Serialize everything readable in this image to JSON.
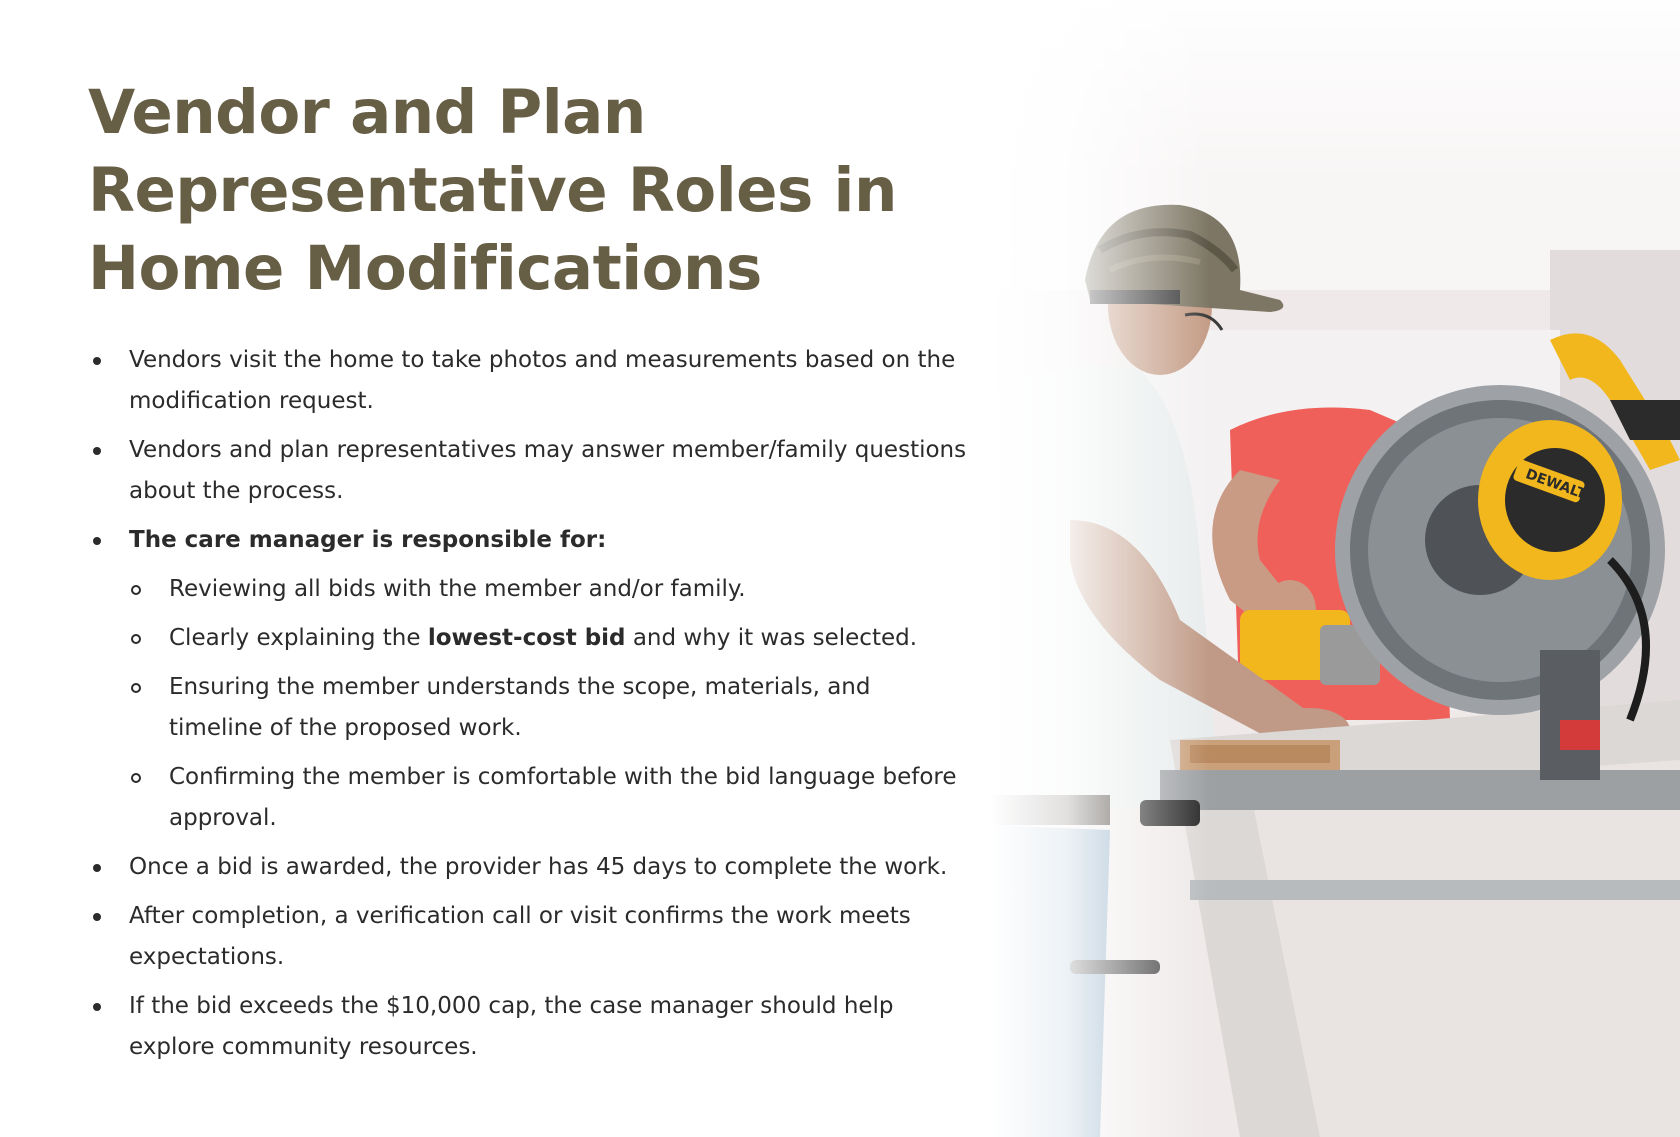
{
  "title": "Vendor and Plan Representative Roles in Home Modifications",
  "bullets": [
    {
      "level": 1,
      "text": "Vendors visit the home to take photos and measurements based on the modification request."
    },
    {
      "level": 1,
      "text": "Vendors and plan representatives may answer member/family questions about the process."
    },
    {
      "level": 1,
      "bold_text": "The care manager is responsible for:"
    },
    {
      "level": 2,
      "text": "Reviewing all bids with the member and/or family."
    },
    {
      "level": 2,
      "text_before": "Clearly explaining the ",
      "bold_text": "lowest-cost bid",
      "text_after": " and why it was selected."
    },
    {
      "level": 2,
      "text": "Ensuring the member understands the scope, materials, and timeline of the proposed work."
    },
    {
      "level": 2,
      "text": "Confirming the member is comfortable with the bid language before approval."
    },
    {
      "level": 1,
      "text": "Once a bid is awarded, the provider has 45 days to complete the work."
    },
    {
      "level": 1,
      "text": "After completion, a verification call or visit confirms the work meets expectations."
    },
    {
      "level": 1,
      "text": "If the bid exceeds the $10,000 cap, the case manager should help explore community resources."
    }
  ],
  "photo": {
    "subject": "two workers cutting wood with a miter saw",
    "saw_brand_text": "DEWALT",
    "colors": {
      "title": "#675e46",
      "body_text": "#2b2b2b",
      "saw_yellow": "#f1b71c",
      "shirt_red": "#f0605a",
      "shirt_gray": "#e8ecec"
    }
  }
}
